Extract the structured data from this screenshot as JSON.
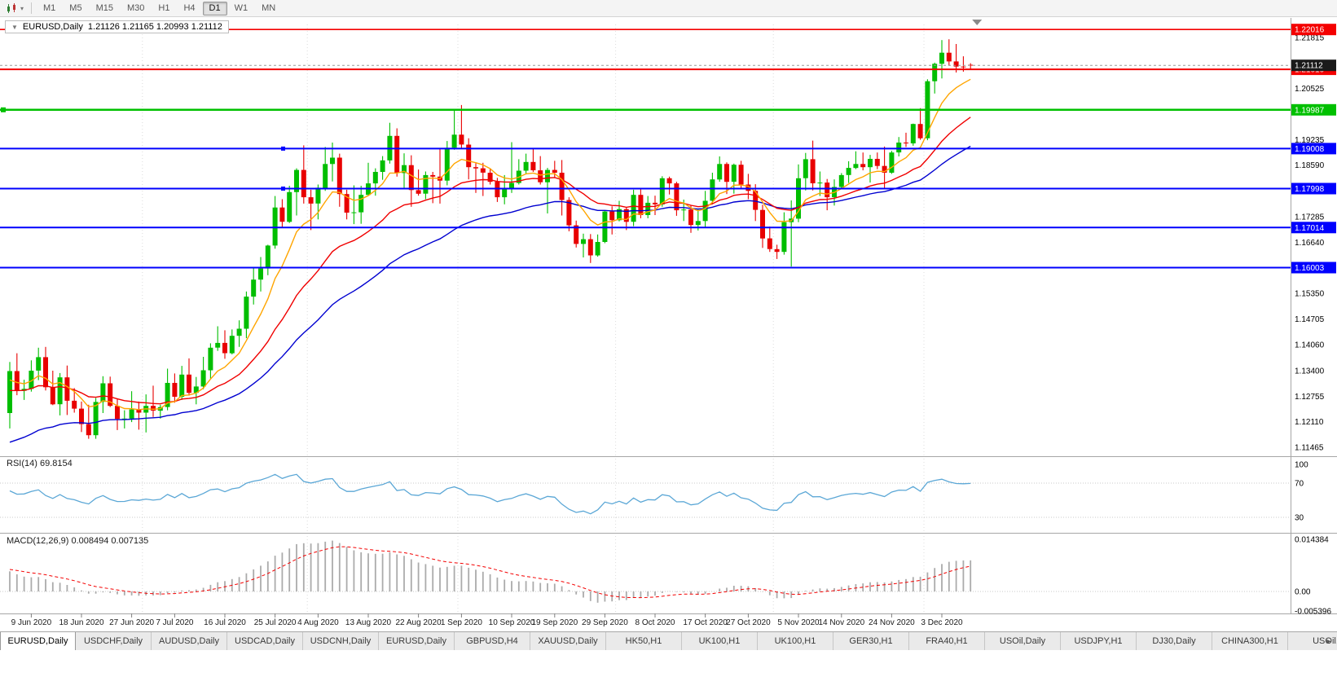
{
  "toolbar": {
    "timeframes": [
      "M1",
      "M5",
      "M15",
      "M30",
      "H1",
      "H4",
      "D1",
      "W1",
      "MN"
    ],
    "active_timeframe": "D1"
  },
  "title_overlay": {
    "symbol": "EURUSD,Daily",
    "ohlc": "1.21126 1.21165 1.20993 1.21112"
  },
  "chart_data": {
    "type": "candlestick",
    "title": "EURUSD,Daily",
    "x_labels": [
      {
        "text": "9 Jun 2020",
        "index": 3
      },
      {
        "text": "18 Jun 2020",
        "index": 10
      },
      {
        "text": "27 Jun 2020",
        "index": 17
      },
      {
        "text": "7 Jul 2020",
        "index": 23
      },
      {
        "text": "16 Jul 2020",
        "index": 30
      },
      {
        "text": "25 Jul 2020",
        "index": 37
      },
      {
        "text": "4 Aug 2020",
        "index": 43
      },
      {
        "text": "13 Aug 2020",
        "index": 50
      },
      {
        "text": "22 Aug 2020",
        "index": 57
      },
      {
        "text": "1 Sep 2020",
        "index": 63
      },
      {
        "text": "10 Sep 2020",
        "index": 70
      },
      {
        "text": "19 Sep 2020",
        "index": 76
      },
      {
        "text": "29 Sep 2020",
        "index": 83
      },
      {
        "text": "8 Oct 2020",
        "index": 90
      },
      {
        "text": "17 Oct 2020",
        "index": 97
      },
      {
        "text": "27 Oct 2020",
        "index": 103
      },
      {
        "text": "5 Nov 2020",
        "index": 110
      },
      {
        "text": "14 Nov 2020",
        "index": 116
      },
      {
        "text": "24 Nov 2020",
        "index": 123
      },
      {
        "text": "3 Dec 2020",
        "index": 130
      }
    ],
    "candles": [
      [
        1.1233,
        1.1362,
        1.1194,
        1.1339
      ],
      [
        1.1339,
        1.1384,
        1.1278,
        1.1289
      ],
      [
        1.1289,
        1.1317,
        1.1266,
        1.1294
      ],
      [
        1.1294,
        1.1366,
        1.1287,
        1.134
      ],
      [
        1.134,
        1.1398,
        1.1316,
        1.1374
      ],
      [
        1.1374,
        1.14,
        1.129,
        1.1298
      ],
      [
        1.1298,
        1.134,
        1.1253,
        1.1255
      ],
      [
        1.1255,
        1.1334,
        1.1227,
        1.1323
      ],
      [
        1.1323,
        1.1353,
        1.1228,
        1.1264
      ],
      [
        1.1264,
        1.1296,
        1.1234,
        1.1244
      ],
      [
        1.1244,
        1.1262,
        1.1185,
        1.1205
      ],
      [
        1.1205,
        1.1254,
        1.1168,
        1.1177
      ],
      [
        1.1177,
        1.1271,
        1.1168,
        1.1261
      ],
      [
        1.1261,
        1.1326,
        1.1233,
        1.1308
      ],
      [
        1.1308,
        1.1325,
        1.1248,
        1.1251
      ],
      [
        1.1251,
        1.1268,
        1.119,
        1.1218
      ],
      [
        1.1218,
        1.124,
        1.1194,
        1.1219
      ],
      [
        1.1219,
        1.1288,
        1.121,
        1.1242
      ],
      [
        1.1242,
        1.1262,
        1.1191,
        1.1234
      ],
      [
        1.1234,
        1.128,
        1.1184,
        1.1251
      ],
      [
        1.1251,
        1.1302,
        1.1223,
        1.1239
      ],
      [
        1.1239,
        1.1254,
        1.1219,
        1.1248
      ],
      [
        1.1248,
        1.1345,
        1.124,
        1.1309
      ],
      [
        1.1309,
        1.1333,
        1.1259,
        1.1274
      ],
      [
        1.1274,
        1.1352,
        1.1266,
        1.133
      ],
      [
        1.133,
        1.1371,
        1.1277,
        1.1284
      ],
      [
        1.1284,
        1.1324,
        1.1255,
        1.13
      ],
      [
        1.13,
        1.1375,
        1.1293,
        1.1341
      ],
      [
        1.1341,
        1.1409,
        1.132,
        1.1398
      ],
      [
        1.1398,
        1.1452,
        1.139,
        1.141
      ],
      [
        1.141,
        1.1442,
        1.137,
        1.1384
      ],
      [
        1.1384,
        1.1444,
        1.1381,
        1.1428
      ],
      [
        1.1428,
        1.1467,
        1.14,
        1.1446
      ],
      [
        1.1446,
        1.154,
        1.1422,
        1.1527
      ],
      [
        1.1527,
        1.1601,
        1.1507,
        1.157
      ],
      [
        1.157,
        1.1627,
        1.154,
        1.1598
      ],
      [
        1.1598,
        1.1658,
        1.1581,
        1.1656
      ],
      [
        1.1656,
        1.1781,
        1.1648,
        1.1752
      ],
      [
        1.1752,
        1.1773,
        1.17,
        1.1716
      ],
      [
        1.1716,
        1.1807,
        1.1713,
        1.1791
      ],
      [
        1.1791,
        1.1851,
        1.1732,
        1.1847
      ],
      [
        1.1847,
        1.1909,
        1.1762,
        1.1778
      ],
      [
        1.1778,
        1.1797,
        1.1695,
        1.1762
      ],
      [
        1.1762,
        1.181,
        1.1722,
        1.1802
      ],
      [
        1.1802,
        1.1905,
        1.1794,
        1.1862
      ],
      [
        1.1862,
        1.1916,
        1.1818,
        1.1878
      ],
      [
        1.1878,
        1.1888,
        1.1754,
        1.1786
      ],
      [
        1.1786,
        1.1797,
        1.1722,
        1.1739
      ],
      [
        1.1739,
        1.1808,
        1.171,
        1.174
      ],
      [
        1.174,
        1.1807,
        1.1711,
        1.1784
      ],
      [
        1.1784,
        1.1865,
        1.1782,
        1.1813
      ],
      [
        1.1813,
        1.1851,
        1.1782,
        1.1842
      ],
      [
        1.1842,
        1.1882,
        1.1822,
        1.1871
      ],
      [
        1.1871,
        1.1966,
        1.1863,
        1.1933
      ],
      [
        1.1933,
        1.1952,
        1.183,
        1.1839
      ],
      [
        1.1839,
        1.1889,
        1.1801,
        1.1859
      ],
      [
        1.1859,
        1.1884,
        1.1754,
        1.1796
      ],
      [
        1.1796,
        1.1848,
        1.1782,
        1.1787
      ],
      [
        1.1787,
        1.1843,
        1.1773,
        1.1834
      ],
      [
        1.1834,
        1.1842,
        1.1763,
        1.183
      ],
      [
        1.183,
        1.19,
        1.1762,
        1.182
      ],
      [
        1.182,
        1.192,
        1.1808,
        1.1903
      ],
      [
        1.1903,
        1.1997,
        1.1898,
        1.1936
      ],
      [
        1.1936,
        1.2011,
        1.1901,
        1.1911
      ],
      [
        1.1911,
        1.1927,
        1.1823,
        1.1854
      ],
      [
        1.1854,
        1.1864,
        1.1789,
        1.1851
      ],
      [
        1.1851,
        1.1865,
        1.1781,
        1.184
      ],
      [
        1.184,
        1.1849,
        1.181,
        1.1817
      ],
      [
        1.1817,
        1.1827,
        1.1766,
        1.1778
      ],
      [
        1.1778,
        1.1834,
        1.176,
        1.1801
      ],
      [
        1.1801,
        1.1917,
        1.1789,
        1.1814
      ],
      [
        1.1814,
        1.1874,
        1.181,
        1.1845
      ],
      [
        1.1845,
        1.1888,
        1.1838,
        1.1867
      ],
      [
        1.1867,
        1.19,
        1.1842,
        1.1846
      ],
      [
        1.1846,
        1.1882,
        1.181,
        1.1816
      ],
      [
        1.1816,
        1.1852,
        1.1737,
        1.1847
      ],
      [
        1.1847,
        1.187,
        1.1827,
        1.184
      ],
      [
        1.184,
        1.1872,
        1.1732,
        1.1771
      ],
      [
        1.1771,
        1.1778,
        1.1692,
        1.1707
      ],
      [
        1.1707,
        1.1719,
        1.1651,
        1.166
      ],
      [
        1.166,
        1.1686,
        1.1626,
        1.1672
      ],
      [
        1.1672,
        1.1685,
        1.1612,
        1.1631
      ],
      [
        1.1631,
        1.1684,
        1.1628,
        1.1665
      ],
      [
        1.1665,
        1.1745,
        1.1662,
        1.1742
      ],
      [
        1.1742,
        1.1755,
        1.1684,
        1.172
      ],
      [
        1.172,
        1.1769,
        1.1717,
        1.1748
      ],
      [
        1.1748,
        1.1752,
        1.1695,
        1.1716
      ],
      [
        1.1716,
        1.1797,
        1.1705,
        1.1784
      ],
      [
        1.1784,
        1.1798,
        1.1725,
        1.1733
      ],
      [
        1.1733,
        1.1781,
        1.1725,
        1.1764
      ],
      [
        1.1764,
        1.1782,
        1.1733,
        1.176
      ],
      [
        1.176,
        1.1831,
        1.1754,
        1.1826
      ],
      [
        1.1826,
        1.183,
        1.1785,
        1.1813
      ],
      [
        1.1813,
        1.1817,
        1.1731,
        1.1745
      ],
      [
        1.1745,
        1.1772,
        1.1718,
        1.1747
      ],
      [
        1.1747,
        1.1758,
        1.1688,
        1.1708
      ],
      [
        1.1708,
        1.1747,
        1.1694,
        1.1718
      ],
      [
        1.1718,
        1.1794,
        1.1703,
        1.1769
      ],
      [
        1.1769,
        1.184,
        1.176,
        1.1823
      ],
      [
        1.1823,
        1.1881,
        1.1817,
        1.1862
      ],
      [
        1.1862,
        1.1866,
        1.1786,
        1.1817
      ],
      [
        1.1817,
        1.1863,
        1.1787,
        1.186
      ],
      [
        1.186,
        1.187,
        1.18,
        1.181
      ],
      [
        1.181,
        1.1837,
        1.1773,
        1.1794
      ],
      [
        1.1794,
        1.1811,
        1.1718,
        1.1746
      ],
      [
        1.1746,
        1.1759,
        1.165,
        1.1674
      ],
      [
        1.1674,
        1.1704,
        1.164,
        1.1647
      ],
      [
        1.1647,
        1.1658,
        1.1622,
        1.164
      ],
      [
        1.164,
        1.174,
        1.1633,
        1.1715
      ],
      [
        1.1715,
        1.177,
        1.1603,
        1.1724
      ],
      [
        1.1724,
        1.1861,
        1.1715,
        1.1826
      ],
      [
        1.1826,
        1.189,
        1.1795,
        1.1874
      ],
      [
        1.1874,
        1.1921,
        1.1795,
        1.1813
      ],
      [
        1.1813,
        1.1843,
        1.1781,
        1.1815
      ],
      [
        1.1815,
        1.1824,
        1.1745,
        1.1778
      ],
      [
        1.1778,
        1.1823,
        1.1757,
        1.1804
      ],
      [
        1.1804,
        1.1839,
        1.1799,
        1.1834
      ],
      [
        1.1834,
        1.1869,
        1.1814,
        1.1852
      ],
      [
        1.1852,
        1.1894,
        1.1849,
        1.1862
      ],
      [
        1.1862,
        1.1891,
        1.1846,
        1.1854
      ],
      [
        1.1854,
        1.1885,
        1.1815,
        1.1875
      ],
      [
        1.1875,
        1.1891,
        1.1849,
        1.1857
      ],
      [
        1.1857,
        1.1906,
        1.1799,
        1.184
      ],
      [
        1.184,
        1.1895,
        1.1837,
        1.1891
      ],
      [
        1.1891,
        1.193,
        1.1881,
        1.1916
      ],
      [
        1.1916,
        1.1941,
        1.1905,
        1.1914
      ],
      [
        1.1914,
        1.1964,
        1.1908,
        1.1963
      ],
      [
        1.1963,
        1.2003,
        1.1923,
        1.1927
      ],
      [
        1.1927,
        1.2076,
        1.1922,
        1.2071
      ],
      [
        1.2071,
        1.2118,
        1.204,
        1.2115
      ],
      [
        1.2115,
        1.2175,
        1.2078,
        1.2143
      ],
      [
        1.2143,
        1.2177,
        1.211,
        1.2121
      ],
      [
        1.2121,
        1.2165,
        1.2093,
        1.2108
      ],
      [
        1.2108,
        1.2134,
        1.2095,
        1.2106
      ],
      [
        1.21126,
        1.21165,
        1.20993,
        1.21112
      ]
    ],
    "y_axis_ticks": [
      "1.21815",
      "1.20525",
      "1.19235",
      "1.18590",
      "1.17285",
      "1.16640",
      "1.15350",
      "1.14705",
      "1.14060",
      "1.13400",
      "1.12755",
      "1.12110",
      "1.11465"
    ],
    "horizontal_lines": [
      {
        "price": 1.22016,
        "label": "1.22016",
        "color": "#f40000",
        "width": 1.6
      },
      {
        "price": 1.2101,
        "label": "1.21010",
        "color": "#f40000",
        "width": 2
      },
      {
        "price": 1.19987,
        "label": "1.19987",
        "color": "#00c000",
        "width": 2.5
      },
      {
        "price": 1.19008,
        "label": "1.19008",
        "color": "#0000fe",
        "width": 2
      },
      {
        "price": 1.17998,
        "label": "1.17998",
        "color": "#0000fe",
        "width": 2
      },
      {
        "price": 1.17014,
        "label": "1.17014",
        "color": "#0000fe",
        "width": 2
      },
      {
        "price": 1.16003,
        "label": "1.16003",
        "color": "#0000fe",
        "width": 2
      }
    ],
    "current_price": {
      "price": 1.21112,
      "label": "1.21112",
      "box_color": "#1a1a1a"
    },
    "moving_averages": [
      {
        "name": "fast-ma",
        "color": "#ffa500"
      },
      {
        "name": "medium-ma",
        "color": "#f00000"
      },
      {
        "name": "slow-ma",
        "color": "#0000d0"
      }
    ],
    "colors": {
      "bull": "#00be00",
      "bear": "#e80000",
      "background": "#ffffff"
    }
  },
  "indicators": {
    "rsi": {
      "label": "RSI(14) 69.8154",
      "levels": [
        "100",
        "70",
        "30"
      ],
      "line_color": "#5ba7d6"
    },
    "macd": {
      "label": "MACD(12,26,9) 0.008494 0.007135",
      "axis_labels": [
        "0.014384",
        "0.00",
        "-0.005396"
      ],
      "histogram_color": "#ababab",
      "signal_color": "#f40000"
    }
  },
  "bottom_tabs": {
    "active_index": 0,
    "tabs": [
      "EURUSD,Daily",
      "USDCHF,Daily",
      "AUDUSD,Daily",
      "USDCAD,Daily",
      "USDCNH,Daily",
      "EURUSD,Daily",
      "GBPUSD,H4",
      "XAUUSD,Daily",
      "HK50,H1",
      "UK100,H1",
      "UK100,H1",
      "GER30,H1",
      "FRA40,H1",
      "USOil,Daily",
      "USDJPY,H1",
      "DJ30,Daily",
      "CHINA300,H1",
      "USOil,"
    ],
    "scroll_right_icon": "►"
  }
}
